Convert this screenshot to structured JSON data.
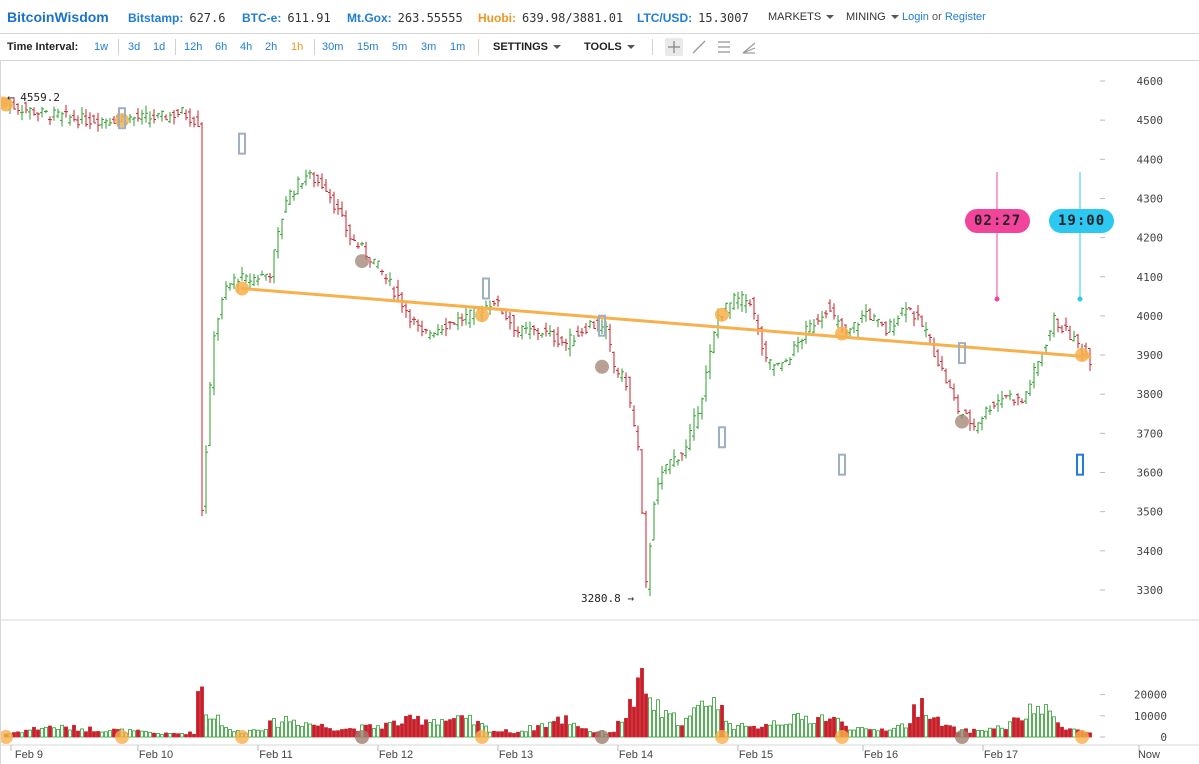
{
  "header": {
    "brand": "BitcoinWisdom",
    "tickers": [
      {
        "label": "Bitstamp:",
        "value": "627.6"
      },
      {
        "label": "BTC-e:",
        "value": "611.91"
      },
      {
        "label": "Mt.Gox:",
        "value": "263.55555"
      },
      {
        "label": "Huobi:",
        "value": "639.98/3881.01"
      },
      {
        "label": "LTC/USD:",
        "value": "15.3007"
      }
    ],
    "menus": [
      "MARKETS",
      "MINING"
    ],
    "login": "Login",
    "or": "or",
    "register": "Register"
  },
  "toolbar": {
    "label": "Time Interval:",
    "intervals": [
      "1w",
      "3d",
      "1d",
      "12h",
      "6h",
      "4h",
      "2h",
      "1h",
      "30m",
      "15m",
      "5m",
      "3m",
      "1m"
    ],
    "active_interval": "1h",
    "settings": "SETTINGS",
    "tools": "TOOLS",
    "tool_icons": [
      "crosshair-icon",
      "line-tool-icon",
      "horizontal-lines-icon",
      "fan-tool-icon"
    ]
  },
  "chart": {
    "high_label": "4559.2",
    "low_label": "3280.8",
    "timer1": "02:27",
    "timer2": "19:00",
    "now_label": "Now",
    "colors": {
      "up": "#2e9c2e",
      "down": "#c8202a",
      "trend": "#f7b04b",
      "timer1": "#f2449a",
      "timer2": "#2cc8f2"
    }
  },
  "chart_data": {
    "type": "bar",
    "title": "",
    "price_axis": {
      "ticks": [
        4600,
        4500,
        4400,
        4300,
        4200,
        4100,
        4000,
        3900,
        3800,
        3700,
        3600,
        3500,
        3400,
        3300
      ],
      "ylim": [
        3230,
        4650
      ]
    },
    "volume_axis": {
      "ticks": [
        20000,
        10000,
        0
      ]
    },
    "x_ticks": [
      "Feb 9",
      "Feb 10",
      "Feb 11",
      "Feb 12",
      "Feb 13",
      "Feb 14",
      "Feb 15",
      "Feb 16",
      "Feb 17",
      "Now"
    ],
    "price_anchors": [
      [
        0,
        4540
      ],
      [
        10,
        4515
      ],
      [
        20,
        4500
      ],
      [
        30,
        4505
      ],
      [
        38,
        4505
      ],
      [
        44,
        4520
      ],
      [
        48,
        4495
      ],
      [
        49,
        3510
      ],
      [
        52,
        3960
      ],
      [
        55,
        4070
      ],
      [
        58,
        4100
      ],
      [
        60,
        4090
      ],
      [
        66,
        4110
      ],
      [
        70,
        4300
      ],
      [
        75,
        4360
      ],
      [
        80,
        4330
      ],
      [
        86,
        4200
      ],
      [
        92,
        4140
      ],
      [
        98,
        4050
      ],
      [
        104,
        3950
      ],
      [
        110,
        3980
      ],
      [
        116,
        4000
      ],
      [
        122,
        4040
      ],
      [
        128,
        3960
      ],
      [
        134,
        3960
      ],
      [
        140,
        3930
      ],
      [
        146,
        3980
      ],
      [
        150,
        3960
      ],
      [
        152,
        3870
      ],
      [
        155,
        3830
      ],
      [
        158,
        3660
      ],
      [
        160,
        3310
      ],
      [
        162,
        3530
      ],
      [
        165,
        3620
      ],
      [
        170,
        3660
      ],
      [
        174,
        3800
      ],
      [
        178,
        4000
      ],
      [
        182,
        4040
      ],
      [
        186,
        4040
      ],
      [
        190,
        3880
      ],
      [
        194,
        3870
      ],
      [
        200,
        3960
      ],
      [
        205,
        4020
      ],
      [
        210,
        3950
      ],
      [
        215,
        4010
      ],
      [
        220,
        3960
      ],
      [
        225,
        4030
      ],
      [
        230,
        3960
      ],
      [
        234,
        3860
      ],
      [
        238,
        3760
      ],
      [
        242,
        3720
      ],
      [
        246,
        3770
      ],
      [
        250,
        3800
      ],
      [
        254,
        3780
      ],
      [
        258,
        3880
      ],
      [
        262,
        3990
      ],
      [
        266,
        3950
      ],
      [
        271,
        3890
      ]
    ],
    "volume_anchors": [
      [
        0,
        1500
      ],
      [
        10,
        5000
      ],
      [
        20,
        4000
      ],
      [
        30,
        3000
      ],
      [
        40,
        1500
      ],
      [
        47,
        2000
      ],
      [
        48,
        22000
      ],
      [
        49,
        25000
      ],
      [
        50,
        12000
      ],
      [
        53,
        10000
      ],
      [
        56,
        3000
      ],
      [
        60,
        2500
      ],
      [
        66,
        6000
      ],
      [
        70,
        9000
      ],
      [
        75,
        7000
      ],
      [
        80,
        5000
      ],
      [
        86,
        4000
      ],
      [
        92,
        5000
      ],
      [
        98,
        7000
      ],
      [
        104,
        9000
      ],
      [
        110,
        8500
      ],
      [
        116,
        8000
      ],
      [
        122,
        3000
      ],
      [
        128,
        2500
      ],
      [
        134,
        6000
      ],
      [
        140,
        9000
      ],
      [
        146,
        3000
      ],
      [
        150,
        2000
      ],
      [
        152,
        3000
      ],
      [
        155,
        12000
      ],
      [
        157,
        18000
      ],
      [
        159,
        26000
      ],
      [
        161,
        18000
      ],
      [
        165,
        10000
      ],
      [
        170,
        8000
      ],
      [
        174,
        15000
      ],
      [
        176,
        22000
      ],
      [
        178,
        15000
      ],
      [
        182,
        6000
      ],
      [
        186,
        4000
      ],
      [
        190,
        7000
      ],
      [
        194,
        8000
      ],
      [
        200,
        9000
      ],
      [
        205,
        10000
      ],
      [
        210,
        6000
      ],
      [
        215,
        3000
      ],
      [
        220,
        4000
      ],
      [
        225,
        6000
      ],
      [
        228,
        15000
      ],
      [
        230,
        17000
      ],
      [
        232,
        9000
      ],
      [
        234,
        6000
      ],
      [
        238,
        3000
      ],
      [
        242,
        3000
      ],
      [
        246,
        4000
      ],
      [
        250,
        5000
      ],
      [
        256,
        12000
      ],
      [
        258,
        15000
      ],
      [
        260,
        12000
      ],
      [
        263,
        8000
      ],
      [
        266,
        4000
      ],
      [
        271,
        2000
      ]
    ]
  }
}
